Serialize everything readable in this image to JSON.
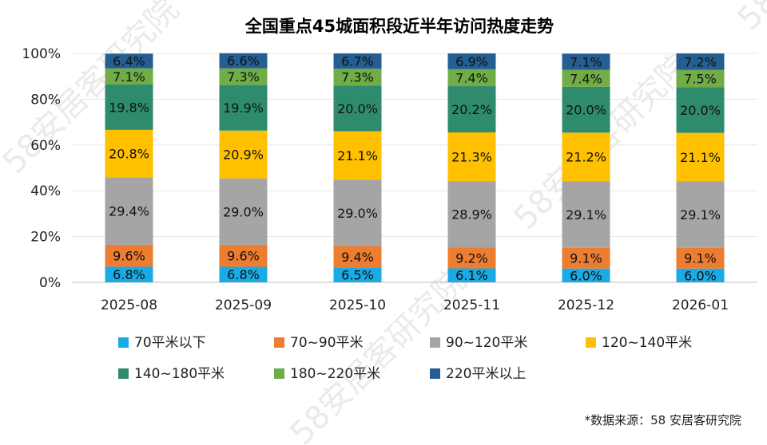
{
  "chart_data": {
    "type": "bar",
    "stacked": true,
    "title": "全国重点45城面积段近半年访问热度走势",
    "categories": [
      "2025-08",
      "2025-09",
      "2025-10",
      "2025-11",
      "2025-12",
      "2026-01"
    ],
    "ylim": [
      0,
      100
    ],
    "yticks": [
      "0%",
      "20%",
      "40%",
      "60%",
      "80%",
      "100%"
    ],
    "grid": true,
    "legend_position": "bottom",
    "series": [
      {
        "name": "70平米以下",
        "color": "#1aabe6",
        "values": [
          6.8,
          6.8,
          6.5,
          6.1,
          6.0,
          6.0
        ],
        "labels": [
          "6.8%",
          "6.8%",
          "6.5%",
          "6.1%",
          "6.0%",
          "6.0%"
        ]
      },
      {
        "name": "70~90平米",
        "color": "#ed7d31",
        "values": [
          9.6,
          9.6,
          9.4,
          9.2,
          9.1,
          9.1
        ],
        "labels": [
          "9.6%",
          "9.6%",
          "9.4%",
          "9.2%",
          "9.1%",
          "9.1%"
        ]
      },
      {
        "name": "90~120平米",
        "color": "#a5a5a5",
        "values": [
          29.4,
          29.0,
          29.0,
          28.9,
          29.1,
          29.1
        ],
        "labels": [
          "29.4%",
          "29.0%",
          "29.0%",
          "28.9%",
          "29.1%",
          "29.1%"
        ]
      },
      {
        "name": "120~140平米",
        "color": "#ffc000",
        "values": [
          20.8,
          20.9,
          21.1,
          21.3,
          21.2,
          21.1
        ],
        "labels": [
          "20.8%",
          "20.9%",
          "21.1%",
          "21.3%",
          "21.2%",
          "21.1%"
        ]
      },
      {
        "name": "140~180平米",
        "color": "#2e8b6e",
        "values": [
          19.8,
          19.9,
          20.0,
          20.2,
          20.0,
          20.0
        ],
        "labels": [
          "19.8%",
          "19.9%",
          "20.0%",
          "20.2%",
          "20.0%",
          "20.0%"
        ]
      },
      {
        "name": "180~220平米",
        "color": "#70ad47",
        "values": [
          7.1,
          7.3,
          7.3,
          7.4,
          7.4,
          7.5
        ],
        "labels": [
          "7.1%",
          "7.3%",
          "7.3%",
          "7.4%",
          "7.4%",
          "7.5%"
        ]
      },
      {
        "name": "220平米以上",
        "color": "#255e91",
        "values": [
          6.4,
          6.6,
          6.7,
          6.9,
          7.1,
          7.2
        ],
        "labels": [
          "6.4%",
          "6.6%",
          "6.7%",
          "6.9%",
          "7.1%",
          "7.2%"
        ]
      }
    ]
  },
  "source": "*数据来源：58 安居客研究院",
  "watermark": "58安居客研究院"
}
